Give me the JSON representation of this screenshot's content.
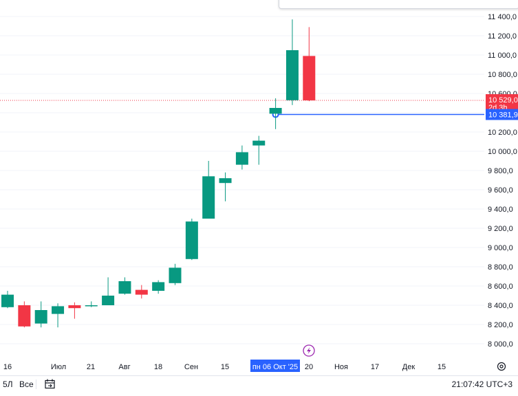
{
  "colors": {
    "up": "#089981",
    "down": "#f23645",
    "line": "#2962ff",
    "grid": "#f0f3fa",
    "axis_text": "#131722",
    "date_tag": "#2962ff",
    "current_price_line": "#f23645"
  },
  "chart_data": {
    "type": "candlestick",
    "timeframe_note": "weekly",
    "y_ticks": [
      8000,
      8200,
      8400,
      8600,
      8800,
      9000,
      9200,
      9400,
      9600,
      9800,
      10000,
      10200,
      10400,
      10600,
      10800,
      11000,
      11200,
      11400
    ],
    "y_tick_labels": [
      "8 000,0",
      "8 200,0",
      "8 400,0",
      "8 600,0",
      "8 800,0",
      "9 000,0",
      "9 200,0",
      "9 400,0",
      "9 600,0",
      "9 800,0",
      "10 000,0",
      "10 200,0",
      "10 400,0",
      "10 600,0",
      "10 800,0",
      "11 000,0",
      "11 200,0",
      "11 400,0"
    ],
    "ylim": [
      7840,
      11590
    ],
    "x_labels": [
      "16",
      "Июл",
      "21",
      "Авг",
      "18",
      "Сен",
      "15",
      "пн 06 Окт '25",
      "20",
      "Ноя",
      "17",
      "Дек",
      "15"
    ],
    "candles": [
      {
        "o": 8380,
        "h": 8550,
        "l": 8370,
        "c": 8510
      },
      {
        "o": 8400,
        "h": 8440,
        "l": 8170,
        "c": 8180
      },
      {
        "o": 8210,
        "h": 8440,
        "l": 8170,
        "c": 8350
      },
      {
        "o": 8310,
        "h": 8420,
        "l": 8170,
        "c": 8390
      },
      {
        "o": 8400,
        "h": 8430,
        "l": 8260,
        "c": 8370
      },
      {
        "o": 8390,
        "h": 8440,
        "l": 8380,
        "c": 8400
      },
      {
        "o": 8400,
        "h": 8690,
        "l": 8400,
        "c": 8500
      },
      {
        "o": 8520,
        "h": 8690,
        "l": 8510,
        "c": 8650
      },
      {
        "o": 8560,
        "h": 8610,
        "l": 8470,
        "c": 8510
      },
      {
        "o": 8550,
        "h": 8660,
        "l": 8520,
        "c": 8640
      },
      {
        "o": 8630,
        "h": 8830,
        "l": 8610,
        "c": 8790
      },
      {
        "o": 8880,
        "h": 9300,
        "l": 8870,
        "c": 9270
      },
      {
        "o": 9300,
        "h": 9900,
        "l": 9300,
        "c": 9740
      },
      {
        "o": 9670,
        "h": 9780,
        "l": 9480,
        "c": 9720
      },
      {
        "o": 9860,
        "h": 10060,
        "l": 9810,
        "c": 9990
      },
      {
        "o": 10060,
        "h": 10160,
        "l": 9860,
        "c": 10110
      },
      {
        "o": 10390,
        "h": 10550,
        "l": 10230,
        "c": 10450
      },
      {
        "o": 10530,
        "h": 11370,
        "l": 10480,
        "c": 11050
      },
      {
        "o": 10990,
        "h": 11290,
        "l": 10520,
        "c": 10529
      }
    ],
    "last_price": 10529.0,
    "last_price_label": "10 529,0",
    "countdown_label": "2d 3h",
    "horizontal_line_price": 10381.9,
    "horizontal_line_label": "10 381,9"
  },
  "bottom_bar": {
    "range_5y": "5Л",
    "range_all": "Все",
    "clock": "21:07:42 UTC+3"
  },
  "icons": {
    "calendar": "calendar-icon",
    "settings": "gear-icon",
    "event": "lightning-icon"
  }
}
